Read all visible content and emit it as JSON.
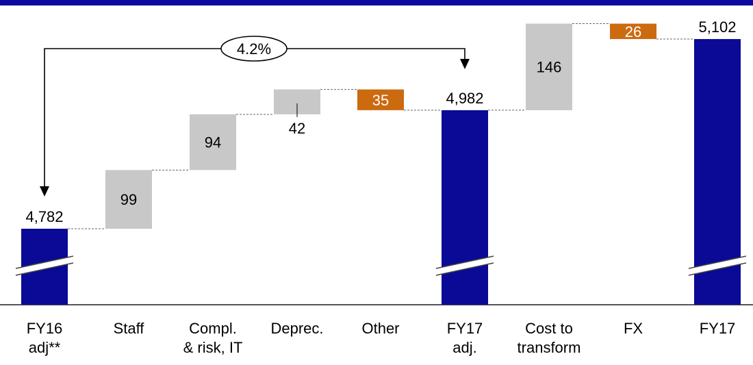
{
  "colors": {
    "total": "#0a0a96",
    "step": "#c8c8c8",
    "negative": "#cc6a10",
    "top_band": "#0a0aa0"
  },
  "chart_data": {
    "type": "bar",
    "subtype": "waterfall",
    "axis_broken": true,
    "categories": [
      [
        "FY16",
        "adj**"
      ],
      [
        "Staff"
      ],
      [
        "Compl.",
        "& risk, IT"
      ],
      [
        "Deprec."
      ],
      [
        "Other"
      ],
      [
        "FY17",
        "adj."
      ],
      [
        "Cost to",
        "transform"
      ],
      [
        "FX"
      ],
      [
        "FY17"
      ]
    ],
    "bars": [
      {
        "kind": "total",
        "value": 4782,
        "label": "4,782"
      },
      {
        "kind": "increase",
        "value": 99,
        "label": "99"
      },
      {
        "kind": "increase",
        "value": 94,
        "label": "94"
      },
      {
        "kind": "increase",
        "value": 42,
        "label": "42"
      },
      {
        "kind": "decrease",
        "value": -35,
        "label": "35"
      },
      {
        "kind": "total",
        "value": 4982,
        "label": "4,982"
      },
      {
        "kind": "increase",
        "value": 146,
        "label": "146"
      },
      {
        "kind": "decrease",
        "value": -26,
        "label": "26"
      },
      {
        "kind": "total",
        "value": 5102,
        "label": "5,102"
      }
    ],
    "growth_annotation": {
      "label": "4.2%",
      "from": "FY16 adj**",
      "to": "FY17 adj."
    }
  }
}
